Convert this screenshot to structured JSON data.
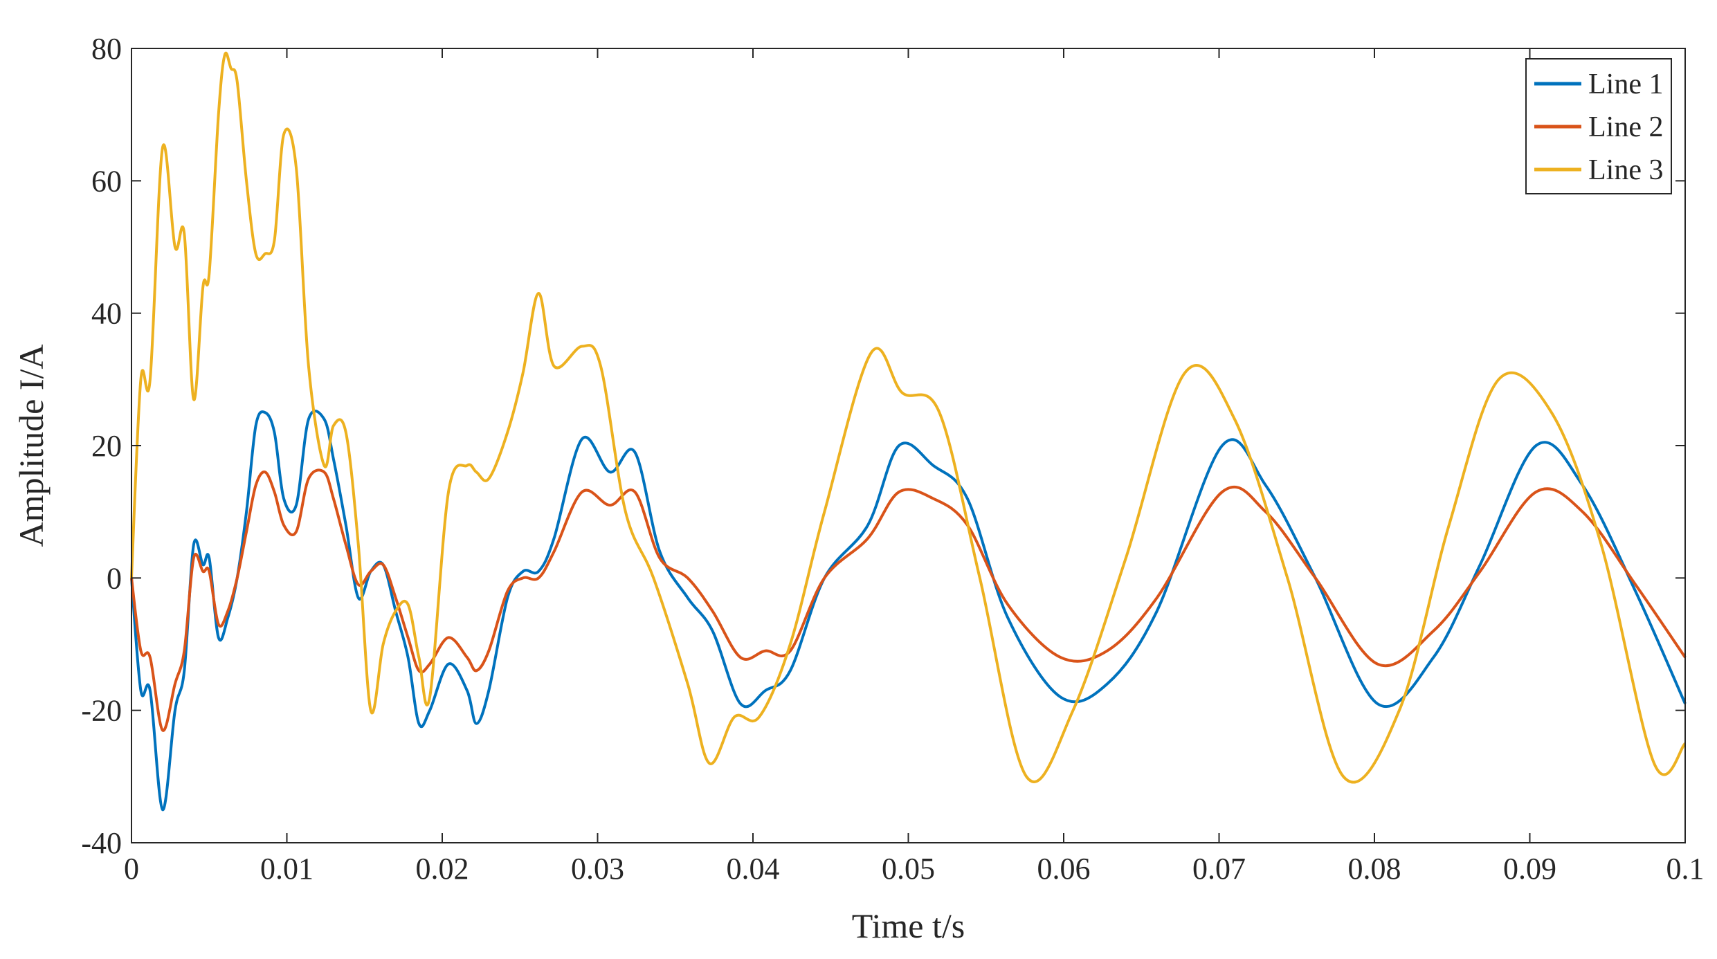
{
  "chart_data": {
    "type": "line",
    "xlabel": "Time t/s",
    "ylabel": "Amplitude I/A",
    "xlim": [
      0,
      0.1
    ],
    "ylim": [
      -40,
      80
    ],
    "x_ticks": [
      0,
      0.01,
      0.02,
      0.03,
      0.04,
      0.05,
      0.06,
      0.07,
      0.08,
      0.09,
      0.1
    ],
    "x_tick_labels": [
      "0",
      "0.01",
      "0.02",
      "0.03",
      "0.04",
      "0.05",
      "0.06",
      "0.07",
      "0.08",
      "0.09",
      "0.1"
    ],
    "y_ticks": [
      -40,
      -20,
      0,
      20,
      40,
      60,
      80
    ],
    "y_tick_labels": [
      "-40",
      "-20",
      "0",
      "20",
      "40",
      "60",
      "80"
    ],
    "grid": false,
    "legend_position": "top-right",
    "series": [
      {
        "name": "Line 1",
        "color": "#0072BD",
        "x": [
          0,
          0.0006,
          0.0012,
          0.002,
          0.0028,
          0.0034,
          0.004,
          0.0046,
          0.005,
          0.0056,
          0.0062,
          0.0068,
          0.0074,
          0.008,
          0.0086,
          0.0092,
          0.0098,
          0.0106,
          0.0114,
          0.0124,
          0.013,
          0.0138,
          0.0146,
          0.0154,
          0.0162,
          0.017,
          0.0178,
          0.0185,
          0.0192,
          0.0204,
          0.0216,
          0.0222,
          0.023,
          0.0242,
          0.0252,
          0.0262,
          0.0272,
          0.029,
          0.0308,
          0.0324,
          0.034,
          0.0358,
          0.0374,
          0.0392,
          0.0408,
          0.0424,
          0.0446,
          0.0474,
          0.0494,
          0.0516,
          0.0538,
          0.0564,
          0.0598,
          0.0628,
          0.066,
          0.0702,
          0.073,
          0.0762,
          0.0802,
          0.0838,
          0.0868,
          0.0904,
          0.0934,
          0.0968,
          0.1
        ],
        "y": [
          0,
          -17,
          -17,
          -35,
          -20,
          -14,
          5,
          2,
          3,
          -9,
          -6,
          0,
          10,
          23,
          25,
          22,
          12,
          11,
          24,
          24,
          18,
          8,
          -3,
          1,
          2,
          -5,
          -12,
          -22,
          -20,
          -13,
          -17,
          -22,
          -17,
          -3,
          1,
          1,
          6,
          21,
          16,
          19,
          4,
          -3,
          -8,
          -19,
          -17,
          -14,
          0,
          8,
          20,
          17,
          12,
          -6,
          -18,
          -16,
          -5,
          20,
          14,
          0,
          -19,
          -12,
          2,
          20,
          14,
          -2,
          -19
        ]
      },
      {
        "name": "Line 2",
        "color": "#D95319",
        "x": [
          0,
          0.0006,
          0.0012,
          0.002,
          0.0028,
          0.0034,
          0.004,
          0.0046,
          0.005,
          0.0056,
          0.0062,
          0.0068,
          0.0074,
          0.008,
          0.0086,
          0.0092,
          0.0098,
          0.0106,
          0.0114,
          0.0124,
          0.013,
          0.0138,
          0.0146,
          0.0154,
          0.0162,
          0.017,
          0.0178,
          0.0185,
          0.0192,
          0.0204,
          0.0216,
          0.0222,
          0.023,
          0.0242,
          0.0252,
          0.0262,
          0.0272,
          0.029,
          0.0308,
          0.0324,
          0.034,
          0.0358,
          0.0374,
          0.0392,
          0.0408,
          0.0424,
          0.0446,
          0.0474,
          0.0494,
          0.0516,
          0.0538,
          0.0564,
          0.0598,
          0.0628,
          0.066,
          0.0702,
          0.073,
          0.0762,
          0.0802,
          0.0838,
          0.0868,
          0.0904,
          0.0934,
          0.0968,
          0.1
        ],
        "y": [
          0,
          -11,
          -12,
          -23,
          -16,
          -11,
          3,
          1,
          1,
          -7,
          -5,
          0,
          7,
          14,
          16,
          13,
          8,
          7,
          15,
          16,
          12,
          5,
          -1,
          1,
          2,
          -3,
          -9,
          -14,
          -13,
          -9,
          -12,
          -14,
          -11,
          -2,
          0,
          0,
          4,
          13,
          11,
          13,
          3,
          0,
          -5,
          -12,
          -11,
          -11,
          0,
          6,
          13,
          12,
          8,
          -4,
          -12,
          -11,
          -3,
          13,
          10,
          0,
          -13,
          -8,
          1,
          13,
          10,
          -1,
          -12
        ]
      },
      {
        "name": "Line 3",
        "color": "#EDB120",
        "x": [
          0,
          0.0006,
          0.0012,
          0.002,
          0.0028,
          0.0034,
          0.004,
          0.0046,
          0.005,
          0.0056,
          0.006,
          0.0064,
          0.0068,
          0.0074,
          0.008,
          0.0086,
          0.0092,
          0.0098,
          0.0106,
          0.0114,
          0.0124,
          0.013,
          0.0138,
          0.0146,
          0.0154,
          0.0162,
          0.017,
          0.0178,
          0.0185,
          0.0192,
          0.0204,
          0.0216,
          0.0222,
          0.023,
          0.0242,
          0.0252,
          0.0262,
          0.0272,
          0.029,
          0.0302,
          0.0318,
          0.0336,
          0.0358,
          0.0372,
          0.0388,
          0.0404,
          0.0424,
          0.0446,
          0.0476,
          0.0496,
          0.052,
          0.0546,
          0.0576,
          0.0606,
          0.064,
          0.0678,
          0.071,
          0.0744,
          0.078,
          0.0816,
          0.0848,
          0.088,
          0.0914,
          0.0946,
          0.098,
          0.1
        ],
        "y": [
          0,
          30,
          30,
          65,
          50,
          52,
          27,
          44,
          46,
          70,
          79,
          77,
          75,
          60,
          49,
          49,
          51,
          67,
          62,
          32,
          17,
          23,
          22,
          5,
          -20,
          -10,
          -5,
          -4,
          -12,
          -18,
          13,
          17,
          16,
          15,
          22,
          31,
          43,
          32,
          35,
          32,
          10,
          0,
          -16,
          -28,
          -21,
          -21,
          -10,
          10,
          34,
          28,
          25,
          0,
          -30,
          -20,
          3,
          31,
          24,
          0,
          -30,
          -20,
          8,
          30,
          25,
          5,
          -28,
          -25
        ]
      }
    ]
  }
}
